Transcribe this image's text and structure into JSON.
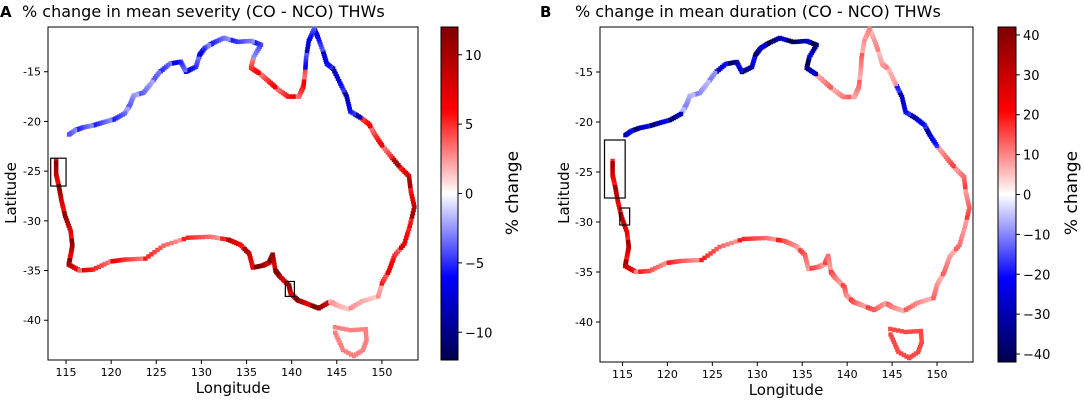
{
  "colors": {
    "negative": "#00004c",
    "mid": "#ffffff",
    "positive": "#7f0000",
    "frame": "#000000"
  },
  "chart_data": [
    {
      "panel_label": "A",
      "type": "heatmap",
      "title": "% change in mean severity (CO - NCO) THWs",
      "xlabel": "Longitude",
      "ylabel": "Latitude",
      "xlim": [
        113,
        154
      ],
      "ylim": [
        -44,
        -10.5
      ],
      "xticks": [
        115,
        120,
        125,
        130,
        135,
        140,
        145,
        150
      ],
      "yticks": [
        -15,
        -20,
        -25,
        -30,
        -35,
        -40
      ],
      "colorbar": {
        "label": "% change",
        "vmin": -12,
        "vmax": 12,
        "ticks": [
          10,
          5,
          0,
          -5,
          -10
        ]
      },
      "coast": [
        [
          -23.9,
          113.9
        ],
        [
          -25.3,
          113.9
        ],
        [
          -26.5,
          114.2
        ],
        [
          -28.0,
          114.5
        ],
        [
          -29.5,
          114.9
        ],
        [
          -31.0,
          115.5
        ],
        [
          -32.5,
          115.7
        ],
        [
          -33.5,
          115.5
        ],
        [
          -34.4,
          115.3
        ],
        [
          -35.0,
          116.5
        ],
        [
          -34.9,
          118.0
        ],
        [
          -34.1,
          119.9
        ],
        [
          -33.9,
          121.5
        ],
        [
          -33.8,
          123.8
        ],
        [
          -32.5,
          125.8
        ],
        [
          -31.7,
          128.5
        ],
        [
          -31.6,
          131.0
        ],
        [
          -31.9,
          133.0
        ],
        [
          -32.4,
          134.3
        ],
        [
          -33.3,
          135.3
        ],
        [
          -34.7,
          135.7
        ],
        [
          -34.5,
          136.8
        ],
        [
          -34.2,
          137.5
        ],
        [
          -33.4,
          137.9
        ],
        [
          -35.0,
          138.2
        ],
        [
          -35.6,
          138.7
        ],
        [
          -36.5,
          139.7
        ],
        [
          -37.3,
          139.9
        ],
        [
          -38.0,
          140.7
        ],
        [
          -38.3,
          141.6
        ],
        [
          -38.8,
          143.0
        ],
        [
          -38.1,
          144.3
        ],
        [
          -38.5,
          145.0
        ],
        [
          -38.9,
          146.3
        ],
        [
          -38.1,
          147.8
        ],
        [
          -37.6,
          149.6
        ],
        [
          -36.3,
          150.0
        ],
        [
          -35.0,
          150.8
        ],
        [
          -33.5,
          151.4
        ],
        [
          -32.3,
          152.5
        ],
        [
          -30.5,
          153.1
        ],
        [
          -28.6,
          153.6
        ],
        [
          -27.0,
          153.2
        ],
        [
          -25.5,
          153.0
        ],
        [
          -24.6,
          152.0
        ],
        [
          -23.5,
          151.0
        ],
        [
          -22.4,
          150.0
        ],
        [
          -21.3,
          149.2
        ],
        [
          -20.3,
          148.6
        ],
        [
          -19.6,
          147.6
        ],
        [
          -19.0,
          146.5
        ],
        [
          -17.5,
          146.1
        ],
        [
          -16.2,
          145.4
        ],
        [
          -14.7,
          144.6
        ],
        [
          -14.2,
          143.9
        ],
        [
          -13.0,
          143.5
        ],
        [
          -11.5,
          142.9
        ],
        [
          -10.7,
          142.5
        ],
        [
          -11.9,
          141.9
        ],
        [
          -13.6,
          141.6
        ],
        [
          -15.0,
          141.5
        ],
        [
          -16.5,
          141.3
        ],
        [
          -17.5,
          140.8
        ],
        [
          -17.5,
          139.6
        ],
        [
          -16.8,
          138.5
        ],
        [
          -16.0,
          137.5
        ],
        [
          -15.2,
          136.5
        ],
        [
          -14.6,
          135.5
        ],
        [
          -13.5,
          135.8
        ],
        [
          -12.3,
          136.6
        ],
        [
          -11.9,
          135.5
        ],
        [
          -12.0,
          134.0
        ],
        [
          -11.6,
          132.5
        ],
        [
          -12.1,
          131.3
        ],
        [
          -12.6,
          130.4
        ],
        [
          -13.3,
          129.8
        ],
        [
          -14.5,
          129.4
        ],
        [
          -15.0,
          128.3
        ],
        [
          -14.0,
          127.7
        ],
        [
          -14.2,
          126.5
        ],
        [
          -15.1,
          125.3
        ],
        [
          -16.2,
          124.4
        ],
        [
          -17.1,
          123.6
        ],
        [
          -17.4,
          122.5
        ],
        [
          -18.3,
          122.1
        ],
        [
          -19.2,
          121.5
        ],
        [
          -19.8,
          120.3
        ],
        [
          -20.1,
          119.1
        ],
        [
          -20.4,
          118.0
        ],
        [
          -20.6,
          116.9
        ],
        [
          -20.9,
          116.0
        ],
        [
          -21.4,
          115.2
        ],
        [
          -21.8,
          114.6
        ],
        [
          -22.4,
          114.1
        ],
        [
          -23.0,
          113.8
        ]
      ],
      "tasmania": [
        [
          -40.7,
          144.8
        ],
        [
          -41.0,
          146.5
        ],
        [
          -40.9,
          148.2
        ],
        [
          -42.0,
          148.3
        ],
        [
          -43.0,
          147.9
        ],
        [
          -43.6,
          146.9
        ],
        [
          -43.0,
          145.7
        ],
        [
          -42.0,
          145.2
        ],
        [
          -41.0,
          144.7
        ]
      ],
      "regions": [
        {
          "from": 0,
          "to": 9,
          "value": 9
        },
        {
          "from": 9,
          "to": 13,
          "value": 5
        },
        {
          "from": 13,
          "to": 17,
          "value": 4
        },
        {
          "from": 17,
          "to": 20,
          "value": 8
        },
        {
          "from": 20,
          "to": 26,
          "value": 11
        },
        {
          "from": 26,
          "to": 31,
          "value": 10
        },
        {
          "from": 31,
          "to": 36,
          "value": 2
        },
        {
          "from": 36,
          "to": 40,
          "value": 6
        },
        {
          "from": 40,
          "to": 45,
          "value": 8
        },
        {
          "from": 45,
          "to": 49,
          "value": 5
        },
        {
          "from": 49,
          "to": 54,
          "value": -7
        },
        {
          "from": 54,
          "to": 60,
          "value": -6
        },
        {
          "from": 60,
          "to": 68,
          "value": 5
        },
        {
          "from": 68,
          "to": 74,
          "value": -4
        },
        {
          "from": 74,
          "to": 80,
          "value": -5
        },
        {
          "from": 80,
          "to": 85,
          "value": -3
        },
        {
          "from": 85,
          "to": 91,
          "value": -4
        }
      ],
      "tasmania_value": 3,
      "boxes": [
        {
          "lon": [
            113.3,
            115.0
          ],
          "lat": [
            -26.5,
            -23.7
          ]
        },
        {
          "lon": [
            139.3,
            140.3
          ],
          "lat": [
            -37.6,
            -36.1
          ]
        }
      ]
    },
    {
      "panel_label": "B",
      "type": "heatmap",
      "title": "% change in mean duration (CO - NCO) THWs",
      "xlabel": "Longitude",
      "ylabel": "Latitude",
      "xlim": [
        112.5,
        154
      ],
      "ylim": [
        -44,
        -10.5
      ],
      "xticks": [
        115,
        120,
        125,
        130,
        135,
        140,
        145,
        150
      ],
      "yticks": [
        -15,
        -20,
        -25,
        -30,
        -35,
        -40
      ],
      "colorbar": {
        "label": "% change",
        "vmin": -42,
        "vmax": 42,
        "ticks": [
          40,
          30,
          20,
          10,
          0,
          -10,
          -20,
          -30,
          -40
        ]
      },
      "regions": [
        {
          "from": 0,
          "to": 9,
          "value": 28
        },
        {
          "from": 9,
          "to": 17,
          "value": 14
        },
        {
          "from": 17,
          "to": 31,
          "value": 12
        },
        {
          "from": 31,
          "to": 40,
          "value": 10
        },
        {
          "from": 40,
          "to": 46,
          "value": 12
        },
        {
          "from": 46,
          "to": 52,
          "value": -25
        },
        {
          "from": 52,
          "to": 58,
          "value": 8
        },
        {
          "from": 58,
          "to": 66,
          "value": 10
        },
        {
          "from": 66,
          "to": 74,
          "value": -35
        },
        {
          "from": 74,
          "to": 80,
          "value": -30
        },
        {
          "from": 80,
          "to": 85,
          "value": -8
        },
        {
          "from": 85,
          "to": 91,
          "value": -30
        }
      ],
      "tasmania_value": 15,
      "boxes": [
        {
          "lon": [
            113.0,
            115.3
          ],
          "lat": [
            -27.6,
            -21.8
          ]
        },
        {
          "lon": [
            114.7,
            115.8
          ],
          "lat": [
            -30.3,
            -28.6
          ]
        }
      ]
    }
  ]
}
